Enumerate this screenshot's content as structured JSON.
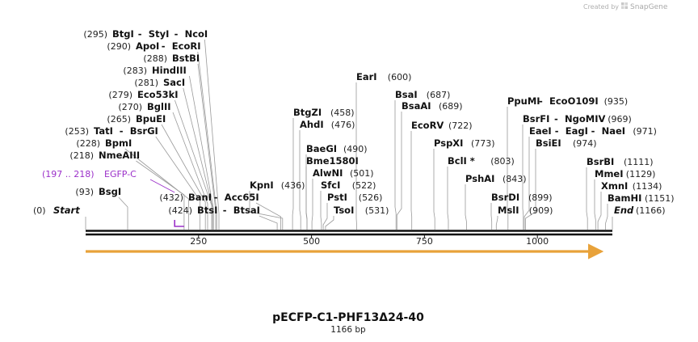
{
  "credit": {
    "prefix": "Created by",
    "brand": "SnapGene"
  },
  "plasmid": {
    "name": "pECFP-C1-PHF13Δ24-40",
    "length_label": "1166 bp",
    "length": 1166
  },
  "axis": {
    "ticks": [
      250,
      500,
      750,
      1000
    ]
  },
  "start_label": {
    "pos": "(0)",
    "name": "Start"
  },
  "end_label": {
    "pos": "(1166)",
    "name": "End"
  },
  "feature": {
    "name": "EGFP-C",
    "range_label": "(197 .. 218)",
    "start": 197,
    "end": 218
  },
  "orf": {
    "start": 0,
    "end": 1166,
    "color": "#e8a23a"
  },
  "sites": [
    {
      "pos": 93,
      "pos_label": "(93)",
      "names": [
        "BsgI"
      ]
    },
    {
      "pos": 218,
      "pos_label": "(218)",
      "names": [
        "NmeAIII"
      ]
    },
    {
      "pos": 228,
      "pos_label": "(228)",
      "names": [
        "BpmI"
      ]
    },
    {
      "pos": 253,
      "pos_label": "(253)",
      "names": [
        "TatI",
        "BsrGI"
      ]
    },
    {
      "pos": 265,
      "pos_label": "(265)",
      "names": [
        "BpuEI"
      ]
    },
    {
      "pos": 270,
      "pos_label": "(270)",
      "names": [
        "BglII"
      ]
    },
    {
      "pos": 279,
      "pos_label": "(279)",
      "names": [
        "Eco53kI"
      ]
    },
    {
      "pos": 281,
      "pos_label": "(281)",
      "names": [
        "SacI"
      ]
    },
    {
      "pos": 283,
      "pos_label": "(283)",
      "names": [
        "HindIII"
      ]
    },
    {
      "pos": 288,
      "pos_label": "(288)",
      "names": [
        "BstBI"
      ]
    },
    {
      "pos": 290,
      "pos_label": "(290)",
      "names": [
        "ApoI",
        "EcoRI"
      ]
    },
    {
      "pos": 295,
      "pos_label": "(295)",
      "names": [
        "BtgI",
        "StyI",
        "NcoI"
      ]
    },
    {
      "pos": 424,
      "pos_label": "(424)",
      "names": [
        "BtsI",
        "BtsaI"
      ]
    },
    {
      "pos": 432,
      "pos_label": "(432)",
      "names": [
        "BanI",
        "Acc65I"
      ]
    },
    {
      "pos": 436,
      "pos_label": "(436)",
      "names": [
        "KpnI"
      ]
    },
    {
      "pos": 458,
      "pos_label": "(458)",
      "names": [
        "BtgZI"
      ]
    },
    {
      "pos": 476,
      "pos_label": "(476)",
      "names": [
        "AhdI"
      ]
    },
    {
      "pos": 490,
      "pos_label": "(490)",
      "names": [
        "BaeGI"
      ]
    },
    {
      "pos": 490,
      "pos_label": "",
      "names": [
        "Bme1580I"
      ]
    },
    {
      "pos": 501,
      "pos_label": "(501)",
      "names": [
        "AlwNI"
      ]
    },
    {
      "pos": 522,
      "pos_label": "(522)",
      "names": [
        "SfcI"
      ]
    },
    {
      "pos": 526,
      "pos_label": "(526)",
      "names": [
        "PstI"
      ]
    },
    {
      "pos": 531,
      "pos_label": "(531)",
      "names": [
        "TsoI"
      ]
    },
    {
      "pos": 600,
      "pos_label": "(600)",
      "names": [
        "EarI"
      ]
    },
    {
      "pos": 687,
      "pos_label": "(687)",
      "names": [
        "BsaI"
      ]
    },
    {
      "pos": 689,
      "pos_label": "(689)",
      "names": [
        "BsaAI"
      ]
    },
    {
      "pos": 722,
      "pos_label": "(722)",
      "names": [
        "EcoRV"
      ]
    },
    {
      "pos": 773,
      "pos_label": "(773)",
      "names": [
        "PspXI"
      ]
    },
    {
      "pos": 803,
      "pos_label": "(803)",
      "names": [
        "BclI *"
      ]
    },
    {
      "pos": 843,
      "pos_label": "(843)",
      "names": [
        "PshAI"
      ]
    },
    {
      "pos": 899,
      "pos_label": "(899)",
      "names": [
        "BsrDI"
      ]
    },
    {
      "pos": 909,
      "pos_label": "(909)",
      "names": [
        "MslI"
      ]
    },
    {
      "pos": 935,
      "pos_label": "(935)",
      "names": [
        "PpuMI",
        "EcoO109I"
      ]
    },
    {
      "pos": 969,
      "pos_label": "(969)",
      "names": [
        "BsrFI",
        "NgoMIV"
      ]
    },
    {
      "pos": 971,
      "pos_label": "(971)",
      "names": [
        "EaeI",
        "EagI",
        "NaeI"
      ]
    },
    {
      "pos": 974,
      "pos_label": "(974)",
      "names": [
        "BsiEI"
      ]
    },
    {
      "pos": 1111,
      "pos_label": "(1111)",
      "names": [
        "BsrBI"
      ]
    },
    {
      "pos": 1129,
      "pos_label": "(1129)",
      "names": [
        "MmeI"
      ]
    },
    {
      "pos": 1134,
      "pos_label": "(1134)",
      "names": [
        "XmnI"
      ]
    },
    {
      "pos": 1151,
      "pos_label": "(1151)",
      "names": [
        "BamHI"
      ]
    }
  ]
}
